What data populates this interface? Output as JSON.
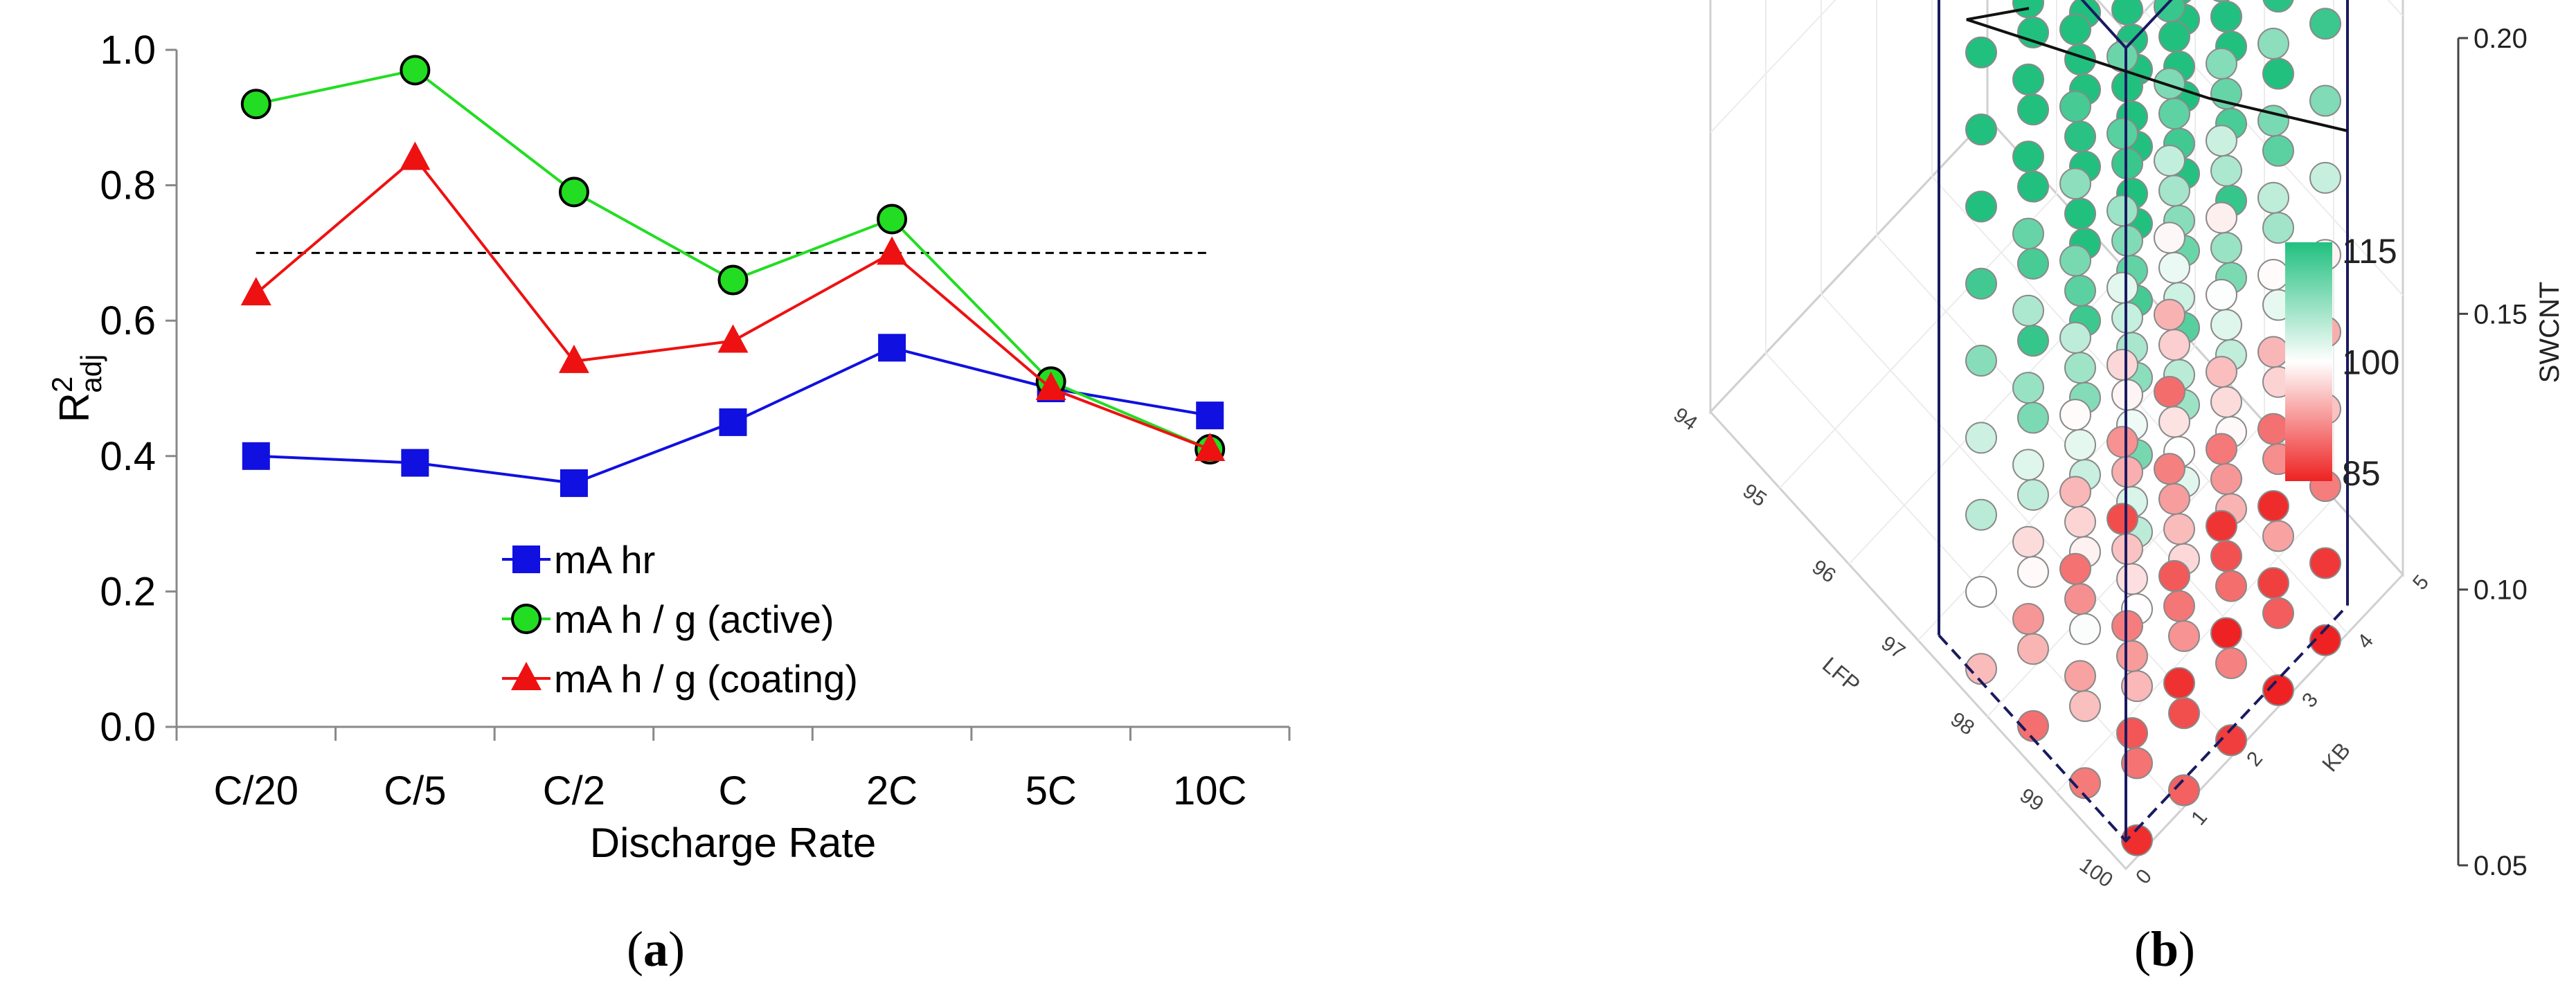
{
  "chart_data": [
    {
      "type": "line",
      "panel_label": "a",
      "xlabel": "Discharge Rate",
      "ylabel_main": "R",
      "ylabel_sup": "2",
      "ylabel_sub": "adj",
      "ylim": [
        0,
        1.0
      ],
      "yticks": [
        "0.0",
        "0.2",
        "0.4",
        "0.6",
        "0.8",
        "1.0"
      ],
      "categories": [
        "C/20",
        "C/5",
        "C/2",
        "C",
        "2C",
        "5C",
        "10C"
      ],
      "reference_line": {
        "y": 0.7,
        "style": "dashed",
        "color": "#000000"
      },
      "series": [
        {
          "name": "mA hr",
          "marker": "square",
          "color": "#1010e0",
          "values": [
            0.4,
            0.39,
            0.36,
            0.45,
            0.56,
            0.5,
            0.46
          ]
        },
        {
          "name": "mA h / g (active)",
          "marker": "circle",
          "color": "#22dd22",
          "values": [
            0.92,
            0.97,
            0.79,
            0.66,
            0.75,
            0.51,
            0.41
          ]
        },
        {
          "name": "mA h / g (coating)",
          "marker": "triangle",
          "color": "#ee1111",
          "values": [
            0.64,
            0.84,
            0.54,
            0.57,
            0.7,
            0.5,
            0.41
          ]
        }
      ],
      "legend_position": "lower-center"
    },
    {
      "type": "scatter",
      "subtype": "3d-scatter",
      "panel_label": "b",
      "z_axis": {
        "label": "SWCNT",
        "ticks": [
          "0.05",
          "0.10",
          "0.15",
          "0.20"
        ]
      },
      "x_axis": {
        "label": "LFP",
        "ticks": [
          "94",
          "95",
          "96",
          "97",
          "98",
          "99",
          "100"
        ]
      },
      "y_axis": {
        "label": "KB",
        "ticks": [
          "0",
          "1",
          "2",
          "3",
          "4",
          "5"
        ]
      },
      "colorbar": {
        "ticks": [
          "115",
          "100",
          "85"
        ],
        "high_color": "#21c07f",
        "mid_color": "#ffffff",
        "low_color": "#ee2222",
        "range": [
          85,
          115
        ]
      }
    }
  ]
}
